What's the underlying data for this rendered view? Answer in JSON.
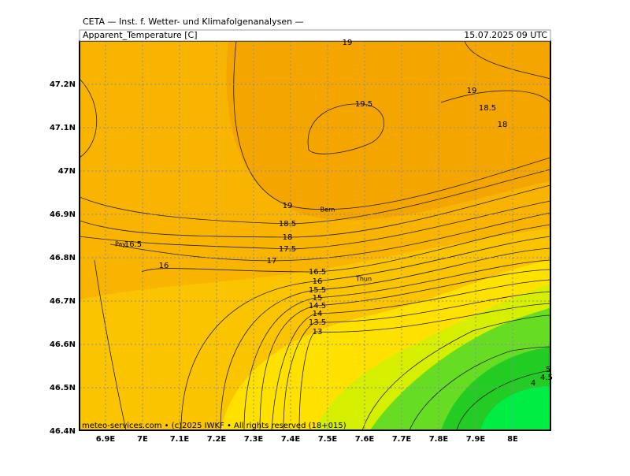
{
  "header": "CETA — Inst. f. Wetter- und Klimafolgenanalysen —",
  "field": "Apparent_Temperature [C]",
  "valid": "15.07.2025 09 UTC",
  "lat_labels": [
    "47.2N",
    "47.1N",
    "47N",
    "46.9N",
    "46.8N",
    "46.7N",
    "46.6N",
    "46.5N",
    "46.4N"
  ],
  "lon_labels": [
    "6.9E",
    "7E",
    "7.1E",
    "7.2E",
    "7.3E",
    "7.4E",
    "7.5E",
    "7.6E",
    "7.7E",
    "7.8E",
    "7.9E",
    "8E"
  ],
  "places": [
    "Bern",
    "Thun",
    "Pay"
  ],
  "contour_labels": [
    "19",
    "19.5",
    "19",
    "18.5",
    "18",
    "19",
    "18.5",
    "18",
    "17.5",
    "17",
    "16.5",
    "16",
    "16.5",
    "16",
    "15.5",
    "15",
    "14.5",
    "14",
    "13.5",
    "13",
    "4",
    "5",
    "4.5"
  ],
  "footer": "meteo-services.com • (c)2025 IWKF • All rights reserved (18+015)"
}
